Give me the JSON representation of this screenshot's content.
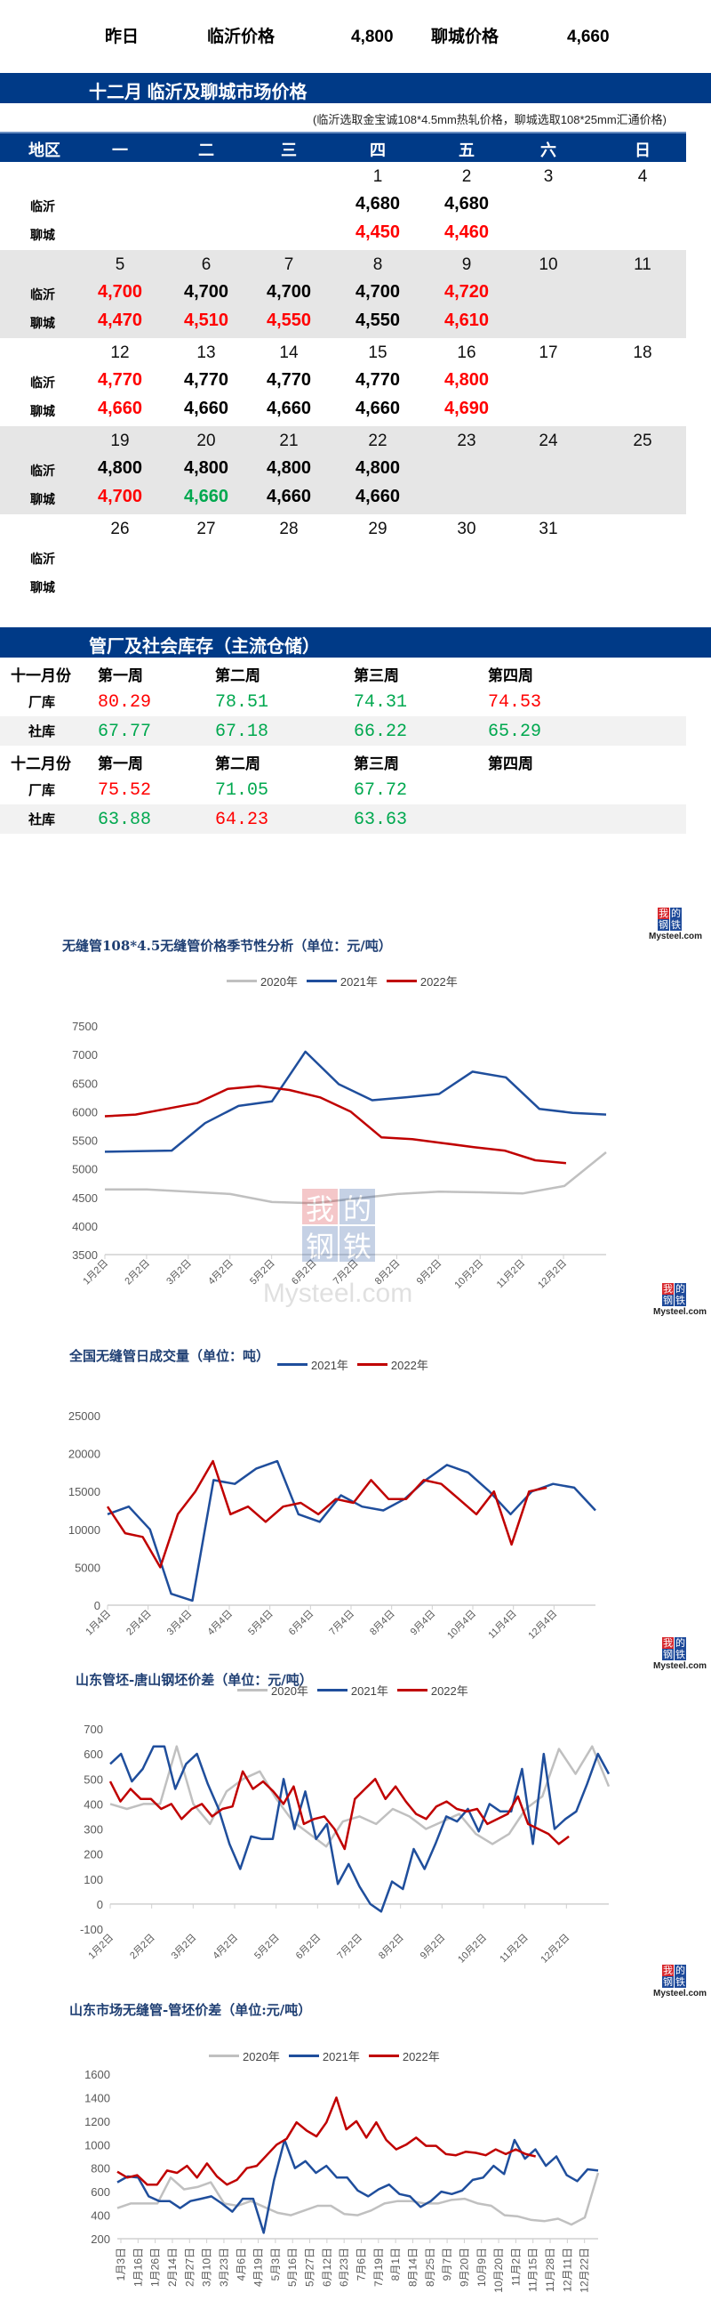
{
  "summary": {
    "label": "昨日",
    "linyi_label": "临沂价格",
    "linyi_price": "4,800",
    "liaocheng_label": "聊城价格",
    "liaocheng_price": "4,660"
  },
  "calendar_section": {
    "title": "十二月  临沂及聊城市场价格",
    "note": "(临沂选取金宝诚108*4.5mm热轧价格，聊城选取108*25mm汇通价格)",
    "header": [
      "地区",
      "一",
      "二",
      "三",
      "四",
      "五",
      "六",
      "日"
    ],
    "row_labels": [
      "临沂",
      "聊城"
    ],
    "weeks": [
      {
        "days": [
          "",
          "",
          "",
          "1",
          "2",
          "3",
          "4"
        ],
        "linyi": [
          {
            "v": ""
          },
          {
            "v": ""
          },
          {
            "v": ""
          },
          {
            "v": "4,680",
            "c": "black"
          },
          {
            "v": "4,680",
            "c": "black"
          },
          {
            "v": ""
          },
          {
            "v": ""
          }
        ],
        "liaocheng": [
          {
            "v": ""
          },
          {
            "v": ""
          },
          {
            "v": ""
          },
          {
            "v": "4,450",
            "c": "red"
          },
          {
            "v": "4,460",
            "c": "red"
          },
          {
            "v": ""
          },
          {
            "v": ""
          }
        ]
      },
      {
        "days": [
          "5",
          "6",
          "7",
          "8",
          "9",
          "10",
          "11"
        ],
        "linyi": [
          {
            "v": "4,700",
            "c": "red"
          },
          {
            "v": "4,700",
            "c": "black"
          },
          {
            "v": "4,700",
            "c": "black"
          },
          {
            "v": "4,700",
            "c": "black"
          },
          {
            "v": "4,720",
            "c": "red"
          },
          {
            "v": ""
          },
          {
            "v": ""
          }
        ],
        "liaocheng": [
          {
            "v": "4,470",
            "c": "red"
          },
          {
            "v": "4,510",
            "c": "red"
          },
          {
            "v": "4,550",
            "c": "red"
          },
          {
            "v": "4,550",
            "c": "black"
          },
          {
            "v": "4,610",
            "c": "red"
          },
          {
            "v": ""
          },
          {
            "v": ""
          }
        ]
      },
      {
        "days": [
          "12",
          "13",
          "14",
          "15",
          "16",
          "17",
          "18"
        ],
        "linyi": [
          {
            "v": "4,770",
            "c": "red"
          },
          {
            "v": "4,770",
            "c": "black"
          },
          {
            "v": "4,770",
            "c": "black"
          },
          {
            "v": "4,770",
            "c": "black"
          },
          {
            "v": "4,800",
            "c": "red"
          },
          {
            "v": ""
          },
          {
            "v": ""
          }
        ],
        "liaocheng": [
          {
            "v": "4,660",
            "c": "red"
          },
          {
            "v": "4,660",
            "c": "black"
          },
          {
            "v": "4,660",
            "c": "black"
          },
          {
            "v": "4,660",
            "c": "black"
          },
          {
            "v": "4,690",
            "c": "red"
          },
          {
            "v": ""
          },
          {
            "v": ""
          }
        ]
      },
      {
        "days": [
          "19",
          "20",
          "21",
          "22",
          "23",
          "24",
          "25"
        ],
        "linyi": [
          {
            "v": "4,800",
            "c": "black"
          },
          {
            "v": "4,800",
            "c": "black"
          },
          {
            "v": "4,800",
            "c": "black"
          },
          {
            "v": "4,800",
            "c": "black"
          },
          {
            "v": ""
          },
          {
            "v": ""
          },
          {
            "v": ""
          }
        ],
        "liaocheng": [
          {
            "v": "4,700",
            "c": "red"
          },
          {
            "v": "4,660",
            "c": "green"
          },
          {
            "v": "4,660",
            "c": "black"
          },
          {
            "v": "4,660",
            "c": "black"
          },
          {
            "v": ""
          },
          {
            "v": ""
          },
          {
            "v": ""
          }
        ]
      },
      {
        "days": [
          "26",
          "27",
          "28",
          "29",
          "30",
          "31",
          ""
        ],
        "linyi": [
          {
            "v": ""
          },
          {
            "v": ""
          },
          {
            "v": ""
          },
          {
            "v": ""
          },
          {
            "v": ""
          },
          {
            "v": ""
          },
          {
            "v": ""
          }
        ],
        "liaocheng": [
          {
            "v": ""
          },
          {
            "v": ""
          },
          {
            "v": ""
          },
          {
            "v": ""
          },
          {
            "v": ""
          },
          {
            "v": ""
          },
          {
            "v": ""
          }
        ]
      }
    ]
  },
  "inventory": {
    "title": "管厂及社会库存（主流仓储）",
    "months": [
      {
        "label": "十一月份",
        "weeks": [
          "第一周",
          "第二周",
          "第三周",
          "第四周"
        ],
        "factory_label": "厂库",
        "factory": [
          {
            "v": "80.29",
            "c": "red"
          },
          {
            "v": "78.51",
            "c": "green"
          },
          {
            "v": "74.31",
            "c": "green"
          },
          {
            "v": "74.53",
            "c": "red"
          }
        ],
        "social_label": "社库",
        "social": [
          {
            "v": "67.77",
            "c": "green"
          },
          {
            "v": "67.18",
            "c": "green"
          },
          {
            "v": "66.22",
            "c": "green"
          },
          {
            "v": "65.29",
            "c": "green"
          }
        ]
      },
      {
        "label": "十二月份",
        "weeks": [
          "第一周",
          "第二周",
          "第三周",
          "第四周"
        ],
        "factory_label": "厂库",
        "factory": [
          {
            "v": "75.52",
            "c": "red"
          },
          {
            "v": "71.05",
            "c": "green"
          },
          {
            "v": "67.72",
            "c": "green"
          },
          {
            "v": ""
          }
        ],
        "social_label": "社库",
        "social": [
          {
            "v": "63.88",
            "c": "green"
          },
          {
            "v": "64.23",
            "c": "red"
          },
          {
            "v": "63.63",
            "c": "green"
          },
          {
            "v": ""
          }
        ]
      }
    ]
  },
  "logo": {
    "chars": [
      "我",
      "的",
      "钢",
      "铁"
    ],
    "text": "Mysteel.com"
  },
  "colors": {
    "brand_blue": "#003a87",
    "up": "#ff0000",
    "down": "#00a84f",
    "s2020": "#c0c0c0",
    "s2021": "#1f4e9c",
    "s2022": "#c00000"
  },
  "chart_data": [
    {
      "type": "line",
      "title": "无缝管108*4.5无缝管价格季节性分析（单位：元/吨）",
      "legend": [
        "2020年",
        "2021年",
        "2022年"
      ],
      "xlabel": "",
      "ylabel": "",
      "categories": [
        "1月2日",
        "2月2日",
        "3月2日",
        "4月2日",
        "5月2日",
        "6月2日",
        "7月2日",
        "8月2日",
        "9月2日",
        "10月2日",
        "11月2日",
        "12月2日"
      ],
      "yticks": [
        "7500",
        "7000",
        "6500",
        "6000",
        "5500",
        "5000",
        "4500",
        "4000",
        "3500"
      ],
      "ylim": [
        3500,
        7500
      ],
      "series": [
        {
          "name": "2020年",
          "values": [
            4640,
            4640,
            4600,
            4560,
            4420,
            4400,
            4480,
            4560,
            4600,
            4590,
            4570,
            4700,
            5290
          ]
        },
        {
          "name": "2021年",
          "values": [
            5300,
            5310,
            5320,
            5800,
            6100,
            6180,
            7050,
            6480,
            6200,
            6250,
            6310,
            6700,
            6600,
            6050,
            5980,
            5950
          ]
        },
        {
          "name": "2022年",
          "values": [
            5920,
            5950,
            6050,
            6150,
            6400,
            6450,
            6380,
            6250,
            6000,
            5550,
            5520,
            5450,
            5380,
            5320,
            5150,
            5100
          ]
        }
      ]
    },
    {
      "type": "line",
      "title": "全国无缝管日成交量（单位：吨）",
      "legend": [
        "2021年",
        "2022年"
      ],
      "categories": [
        "1月4日",
        "2月4日",
        "3月4日",
        "4月4日",
        "5月4日",
        "6月4日",
        "7月4日",
        "8月4日",
        "9月4日",
        "10月4日",
        "11月4日",
        "12月4日"
      ],
      "yticks": [
        "25000",
        "20000",
        "15000",
        "10000",
        "5000",
        "0"
      ],
      "ylim": [
        0,
        25000
      ],
      "series": [
        {
          "name": "2021年",
          "values": [
            12000,
            13000,
            10000,
            1500,
            600,
            16500,
            16000,
            18000,
            19000,
            12000,
            11000,
            14500,
            13000,
            12500,
            14000,
            16500,
            18500,
            17500,
            15000,
            12000,
            15000,
            16000,
            15500,
            12500
          ]
        },
        {
          "name": "2022年",
          "values": [
            13000,
            9500,
            9000,
            5000,
            12000,
            15000,
            19000,
            12000,
            13000,
            11000,
            13000,
            13500,
            12000,
            14000,
            13500,
            16500,
            14000,
            14000,
            16500,
            16000,
            14000,
            12000,
            15000,
            8000,
            15000,
            15500
          ]
        }
      ]
    },
    {
      "type": "line",
      "title": "山东管坯-唐山钢坯价差（单位：元/吨）",
      "legend": [
        "2020年",
        "2021年",
        "2022年"
      ],
      "categories": [
        "1月2日",
        "2月2日",
        "3月2日",
        "4月2日",
        "5月2日",
        "6月2日",
        "7月2日",
        "8月2日",
        "9月2日",
        "10月2日",
        "11月2日",
        "12月2日"
      ],
      "yticks": [
        "700",
        "600",
        "500",
        "400",
        "300",
        "200",
        "100",
        "0",
        "-100"
      ],
      "ylim": [
        -100,
        700
      ],
      "series": [
        {
          "name": "2020年",
          "values": [
            400,
            380,
            400,
            400,
            630,
            400,
            320,
            450,
            500,
            530,
            420,
            330,
            280,
            230,
            330,
            350,
            320,
            380,
            350,
            300,
            330,
            360,
            280,
            240,
            280,
            380,
            430,
            620,
            520,
            630,
            470
          ]
        },
        {
          "name": "2021年",
          "values": [
            560,
            600,
            490,
            540,
            630,
            630,
            460,
            560,
            600,
            480,
            380,
            240,
            140,
            270,
            260,
            260,
            500,
            300,
            450,
            260,
            320,
            80,
            160,
            70,
            0,
            -30,
            90,
            60,
            220,
            140,
            240,
            350,
            330,
            380,
            290,
            400,
            370,
            370,
            540,
            240,
            600,
            300,
            340,
            370,
            480,
            600,
            520
          ]
        },
        {
          "name": "2022年",
          "values": [
            490,
            410,
            460,
            420,
            420,
            380,
            400,
            340,
            380,
            400,
            350,
            380,
            390,
            530,
            460,
            490,
            450,
            400,
            470,
            320,
            340,
            350,
            300,
            220,
            420,
            460,
            500,
            420,
            470,
            410,
            360,
            340,
            390,
            410,
            380,
            370,
            380,
            320,
            340,
            360,
            430,
            320,
            300,
            280,
            240,
            270
          ]
        }
      ]
    },
    {
      "type": "line",
      "title": "山东市场无缝管-管坯价差（单位:元/吨）",
      "legend": [
        "2020年",
        "2021年",
        "2022年"
      ],
      "categories": [
        "1月3日",
        "1月16日",
        "1月26日",
        "2月14日",
        "2月27日",
        "3月10日",
        "3月23日",
        "4月6日",
        "4月19日",
        "5月3日",
        "5月16日",
        "5月27日",
        "6月12日",
        "6月23日",
        "7月6日",
        "7月19日",
        "8月1日",
        "8月14日",
        "8月25日",
        "9月7日",
        "9月20日",
        "10月9日",
        "10月20日",
        "11月2日",
        "11月15日",
        "11月28日",
        "12月11日",
        "12月22日"
      ],
      "yticks": [
        "1600",
        "1400",
        "1200",
        "1000",
        "800",
        "600",
        "400",
        "200"
      ],
      "ylim": [
        200,
        1600
      ],
      "series": [
        {
          "name": "2020年",
          "values": [
            460,
            500,
            500,
            500,
            720,
            620,
            640,
            680,
            500,
            480,
            520,
            470,
            420,
            400,
            440,
            480,
            480,
            410,
            400,
            440,
            500,
            520,
            520,
            500,
            500,
            530,
            540,
            500,
            480,
            400,
            390,
            360,
            350,
            370,
            320,
            380,
            760
          ]
        },
        {
          "name": "2021年",
          "values": [
            680,
            730,
            720,
            560,
            520,
            520,
            460,
            520,
            540,
            560,
            500,
            430,
            540,
            540,
            250,
            700,
            1040,
            800,
            860,
            760,
            820,
            720,
            720,
            610,
            560,
            620,
            660,
            580,
            560,
            470,
            520,
            600,
            580,
            610,
            700,
            720,
            820,
            750,
            1040,
            880,
            960,
            820,
            900,
            740,
            690,
            790,
            780
          ]
        },
        {
          "name": "2022年",
          "values": [
            770,
            720,
            740,
            660,
            660,
            780,
            760,
            820,
            720,
            840,
            730,
            660,
            700,
            800,
            820,
            910,
            1000,
            1050,
            1190,
            1120,
            1070,
            1190,
            1400,
            1130,
            1200,
            1060,
            1190,
            1040,
            960,
            1000,
            1060,
            990,
            990,
            920,
            910,
            940,
            930,
            910,
            960,
            920,
            960,
            920,
            900
          ]
        }
      ]
    }
  ]
}
